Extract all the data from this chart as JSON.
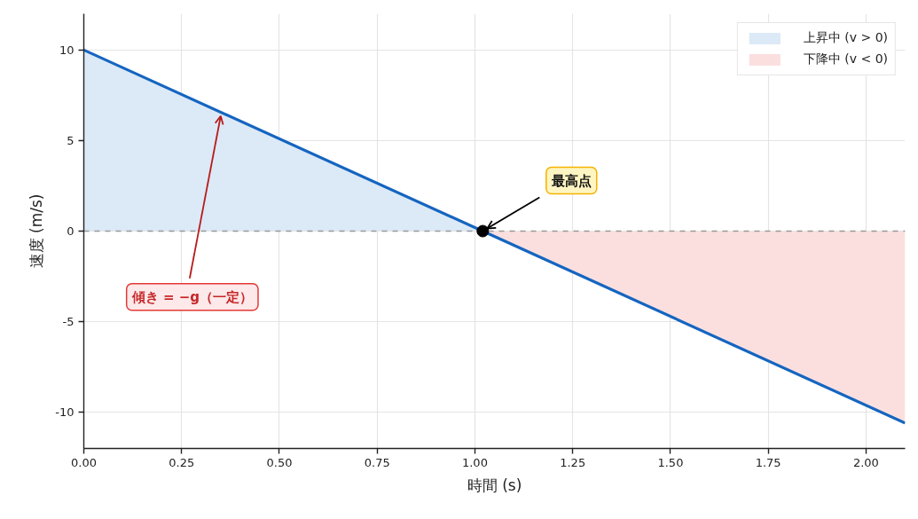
{
  "chart_data": {
    "type": "line",
    "xlabel": "時間 (s)",
    "ylabel": "速度 (m/s)",
    "series": [
      {
        "type": "area",
        "name": "上昇中 (v > 0)",
        "color": "#dce9f6",
        "x": [
          0,
          1.02
        ],
        "values": [
          10,
          0
        ]
      },
      {
        "type": "area",
        "name": "下降中 (v < 0)",
        "color": "#fbdfdf",
        "x": [
          1.02,
          2.1
        ],
        "values": [
          0,
          -10.6
        ]
      },
      {
        "color": "#1565c0",
        "x": [
          0,
          1.02,
          2.1
        ],
        "values": [
          10,
          0,
          -10.6
        ]
      },
      {
        "type": "scatter",
        "color": "#000000",
        "marker": "circle",
        "x": [
          1.02
        ],
        "values": [
          0
        ]
      }
    ],
    "ref_lines": [
      {
        "axis": "y",
        "value": 0,
        "color": "#999999",
        "line_style": "dashed"
      }
    ],
    "annotations": [
      {
        "text": "最高点",
        "x": 1.02,
        "y": 0
      },
      {
        "text": "傾き = −g（一定）",
        "x": 0.35,
        "y": 6.5
      }
    ],
    "xlim": [
      0,
      2.1
    ],
    "ylim": [
      -12,
      12
    ],
    "xticks": [
      {
        "value": 0,
        "label": "0.00"
      },
      0.25,
      {
        "value": 0.5,
        "label": "0.50"
      },
      0.75,
      {
        "value": 1,
        "label": "1.00"
      },
      1.25,
      {
        "value": 1.5,
        "label": "1.50"
      },
      1.75,
      {
        "value": 2,
        "label": "2.00"
      }
    ],
    "yticks": [
      -10,
      -5,
      0,
      5,
      10
    ],
    "grid": true,
    "legend": "top right",
    "line_style": "solid"
  }
}
